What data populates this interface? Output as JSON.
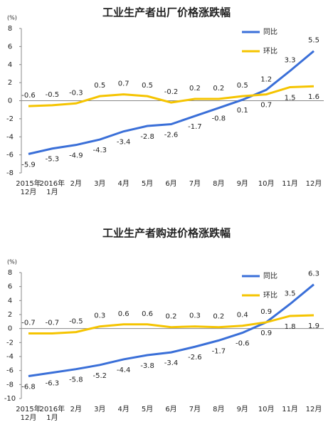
{
  "chart_data": [
    {
      "type": "line",
      "title": "工业生产者出厂价格涨跌幅",
      "y_label": "(%)",
      "categories": [
        "2015年\n12月",
        "2016年\n1月",
        "2月",
        "3月",
        "4月",
        "5月",
        "6月",
        "7月",
        "8月",
        "9月",
        "10月",
        "11月",
        "12月"
      ],
      "series": [
        {
          "name": "同比",
          "color": "#3a6fd8",
          "values": [
            -5.9,
            -5.3,
            -4.9,
            -4.3,
            -3.4,
            -2.8,
            -2.6,
            -1.7,
            -0.8,
            0.1,
            1.2,
            3.3,
            5.5
          ]
        },
        {
          "name": "环比",
          "color": "#f5c400",
          "values": [
            -0.6,
            -0.5,
            -0.3,
            0.5,
            0.7,
            0.5,
            -0.2,
            0.2,
            0.2,
            0.5,
            0.7,
            1.5,
            1.6
          ]
        }
      ],
      "ylim": [
        -8,
        8
      ],
      "yticks": [
        -8,
        -6,
        -4,
        -2,
        0,
        2,
        4,
        6,
        8
      ],
      "legend": "upper right"
    },
    {
      "type": "line",
      "title": "工业生产者购进价格涨跌幅",
      "y_label": "(%)",
      "categories": [
        "2015年\n12月",
        "2016年\n1月",
        "2月",
        "3月",
        "4月",
        "5月",
        "6月",
        "7月",
        "8月",
        "9月",
        "10月",
        "11月",
        "12月"
      ],
      "series": [
        {
          "name": "同比",
          "color": "#3a6fd8",
          "values": [
            -6.8,
            -6.3,
            -5.8,
            -5.2,
            -4.4,
            -3.8,
            -3.4,
            -2.6,
            -1.7,
            -0.6,
            0.9,
            3.5,
            6.3
          ]
        },
        {
          "name": "环比",
          "color": "#f5c400",
          "values": [
            -0.7,
            -0.7,
            -0.5,
            0.3,
            0.6,
            0.6,
            0.2,
            0.3,
            0.2,
            0.4,
            0.9,
            1.8,
            1.9
          ]
        }
      ],
      "ylim": [
        -10,
        8
      ],
      "yticks": [
        -10,
        -8,
        -6,
        -4,
        -2,
        0,
        2,
        4,
        6,
        8
      ],
      "legend": "upper right"
    }
  ]
}
